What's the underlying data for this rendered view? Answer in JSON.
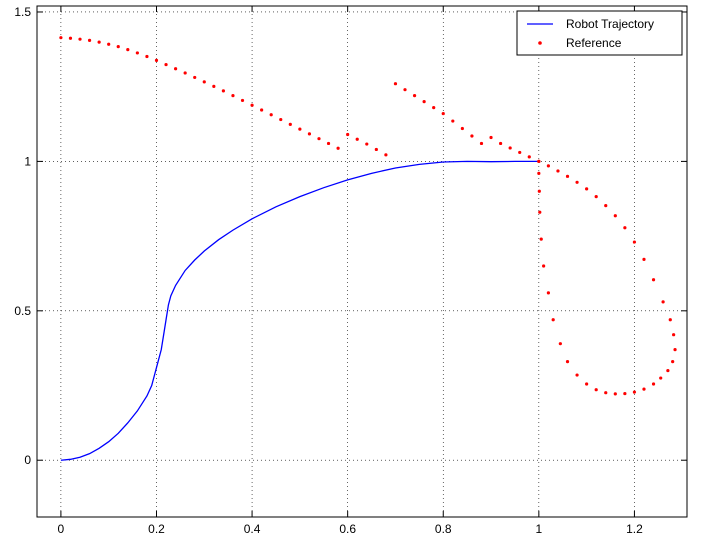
{
  "chart_data": {
    "type": "line",
    "title": "",
    "xlabel": "",
    "ylabel": "",
    "xlim": [
      -0.05,
      1.31
    ],
    "ylim": [
      -0.19,
      1.52
    ],
    "xticks": [
      0,
      0.2,
      0.4,
      0.6,
      0.8,
      1,
      1.2
    ],
    "yticks": [
      0,
      0.5,
      1,
      1.5
    ],
    "xtick_labels": [
      "0",
      "0.2",
      "0.4",
      "0.6",
      "0.8",
      "1",
      "1.2"
    ],
    "ytick_labels": [
      "0",
      "0.5",
      "1",
      "1.5"
    ],
    "grid": true,
    "legend_position": "top-right",
    "legend": [
      "Robot Trajectory",
      "Reference"
    ],
    "series": [
      {
        "name": "Robot Trajectory",
        "style": "line",
        "color": "#0000ff",
        "points": [
          [
            0,
            0
          ],
          [
            0.02,
            0.003
          ],
          [
            0.04,
            0.01
          ],
          [
            0.06,
            0.022
          ],
          [
            0.08,
            0.04
          ],
          [
            0.1,
            0.062
          ],
          [
            0.12,
            0.09
          ],
          [
            0.14,
            0.125
          ],
          [
            0.16,
            0.165
          ],
          [
            0.18,
            0.215
          ],
          [
            0.19,
            0.25
          ],
          [
            0.2,
            0.31
          ],
          [
            0.21,
            0.37
          ],
          [
            0.215,
            0.42
          ],
          [
            0.22,
            0.47
          ],
          [
            0.225,
            0.52
          ],
          [
            0.23,
            0.55
          ],
          [
            0.24,
            0.585
          ],
          [
            0.25,
            0.61
          ],
          [
            0.26,
            0.635
          ],
          [
            0.28,
            0.67
          ],
          [
            0.3,
            0.7
          ],
          [
            0.33,
            0.738
          ],
          [
            0.36,
            0.77
          ],
          [
            0.4,
            0.808
          ],
          [
            0.45,
            0.848
          ],
          [
            0.5,
            0.882
          ],
          [
            0.55,
            0.912
          ],
          [
            0.6,
            0.938
          ],
          [
            0.65,
            0.96
          ],
          [
            0.7,
            0.978
          ],
          [
            0.75,
            0.99
          ],
          [
            0.8,
            0.998
          ],
          [
            0.85,
            1.0
          ],
          [
            0.9,
            0.999
          ],
          [
            0.95,
            1.0
          ],
          [
            1.0,
            1.0
          ]
        ]
      },
      {
        "name": "Reference",
        "style": "dots",
        "color": "#ff0000",
        "points": [
          [
            0.0,
            1.414
          ],
          [
            0.02,
            1.412
          ],
          [
            0.04,
            1.409
          ],
          [
            0.06,
            1.405
          ],
          [
            0.08,
            1.399
          ],
          [
            0.1,
            1.392
          ],
          [
            0.12,
            1.384
          ],
          [
            0.14,
            1.374
          ],
          [
            0.16,
            1.363
          ],
          [
            0.18,
            1.351
          ],
          [
            0.2,
            1.338
          ],
          [
            0.22,
            1.324
          ],
          [
            0.24,
            1.31
          ],
          [
            0.26,
            1.296
          ],
          [
            0.28,
            1.281
          ],
          [
            0.3,
            1.266
          ],
          [
            0.32,
            1.251
          ],
          [
            0.34,
            1.236
          ],
          [
            0.36,
            1.22
          ],
          [
            0.38,
            1.204
          ],
          [
            0.4,
            1.188
          ],
          [
            0.42,
            1.172
          ],
          [
            0.44,
            1.156
          ],
          [
            0.46,
            1.14
          ],
          [
            0.48,
            1.124
          ],
          [
            0.5,
            1.108
          ],
          [
            0.52,
            1.092
          ],
          [
            0.54,
            1.076
          ],
          [
            0.56,
            1.06
          ],
          [
            0.58,
            1.044
          ],
          [
            0.6,
            1.09
          ],
          [
            0.62,
            1.074
          ],
          [
            0.64,
            1.058
          ],
          [
            0.66,
            1.04
          ],
          [
            0.68,
            1.022
          ],
          [
            0.7,
            1.26
          ],
          [
            0.72,
            1.24
          ],
          [
            0.74,
            1.22
          ],
          [
            0.76,
            1.2
          ],
          [
            0.78,
            1.18
          ],
          [
            0.8,
            1.16
          ],
          [
            0.82,
            1.135
          ],
          [
            0.84,
            1.11
          ],
          [
            0.86,
            1.085
          ],
          [
            0.88,
            1.06
          ],
          [
            0.9,
            1.08
          ],
          [
            0.92,
            1.06
          ],
          [
            0.94,
            1.045
          ],
          [
            0.96,
            1.03
          ],
          [
            0.98,
            1.015
          ],
          [
            1.0,
            1.0
          ],
          [
            1.02,
            0.985
          ],
          [
            1.04,
            0.968
          ],
          [
            1.06,
            0.95
          ],
          [
            1.08,
            0.93
          ],
          [
            1.1,
            0.908
          ],
          [
            1.12,
            0.882
          ],
          [
            1.14,
            0.852
          ],
          [
            1.16,
            0.818
          ],
          [
            1.18,
            0.778
          ],
          [
            1.2,
            0.73
          ],
          [
            1.22,
            0.672
          ],
          [
            1.24,
            0.604
          ],
          [
            1.26,
            0.53
          ],
          [
            1.275,
            0.47
          ],
          [
            1.282,
            0.42
          ],
          [
            1.285,
            0.37
          ],
          [
            1.28,
            0.33
          ],
          [
            1.27,
            0.3
          ],
          [
            1.255,
            0.275
          ],
          [
            1.24,
            0.255
          ],
          [
            1.22,
            0.238
          ],
          [
            1.2,
            0.228
          ],
          [
            1.18,
            0.223
          ],
          [
            1.16,
            0.222
          ],
          [
            1.14,
            0.226
          ],
          [
            1.12,
            0.236
          ],
          [
            1.1,
            0.255
          ],
          [
            1.08,
            0.285
          ],
          [
            1.06,
            0.33
          ],
          [
            1.045,
            0.39
          ],
          [
            1.03,
            0.47
          ],
          [
            1.02,
            0.56
          ],
          [
            1.01,
            0.65
          ],
          [
            1.005,
            0.74
          ],
          [
            1.002,
            0.83
          ],
          [
            1.001,
            0.9
          ],
          [
            1.0,
            0.96
          ],
          [
            1.0,
            1.0
          ]
        ]
      }
    ]
  }
}
